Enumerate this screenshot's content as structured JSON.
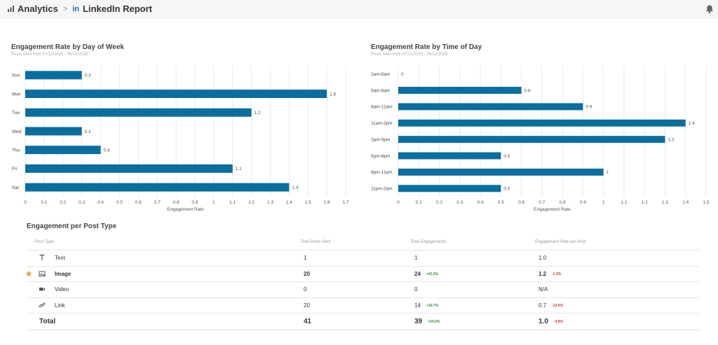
{
  "breadcrumb": {
    "section": "Analytics",
    "separator": ">",
    "network_badge": "in",
    "page": "LinkedIn Report"
  },
  "icons": {
    "analytics": "bar-chart-icon",
    "separator": "chevron-right-icon",
    "linkedin": "linkedin-icon",
    "notifications": "bell-icon"
  },
  "charts": {
    "day": {
      "title": "Engagement Rate by Day of Week",
      "subtitle": "Posts Sent from 07/12/2025 - 08/11/2025"
    },
    "time": {
      "title": "Engagement Rate by Time of Day",
      "subtitle": "Posts Sent from 07/12/2025 - 08/11/2025"
    }
  },
  "chart_data": [
    {
      "type": "bar",
      "orientation": "horizontal",
      "title": "Engagement Rate by Day of Week",
      "subtitle": "Posts Sent from 07/12/2025 - 08/11/2025",
      "categories": [
        "Sun",
        "Mon",
        "Tue",
        "Wed",
        "Thu",
        "Fri",
        "Sat"
      ],
      "values": [
        0.3,
        1.6,
        1.2,
        0.3,
        0.4,
        1.1,
        1.4
      ],
      "value_labels": [
        "0.3",
        "1.6",
        "1.2",
        "0.3",
        "0.4",
        "1.1",
        "1.4"
      ],
      "xlabel": "Engagement Rate",
      "xlim": [
        0,
        1.7
      ],
      "xticks": [
        "0",
        "0.1",
        "0.2",
        "0.3",
        "0.4",
        "0.5",
        "0.6",
        "0.7",
        "0.8",
        "0.9",
        "1",
        "1.1",
        "1.2",
        "1.3",
        "1.4",
        "1.5",
        "1.6",
        "1.7"
      ],
      "grid": true,
      "color": "#0a6e9e"
    },
    {
      "type": "bar",
      "orientation": "horizontal",
      "title": "Engagement Rate by Time of Day",
      "subtitle": "Posts Sent from 07/12/2025 - 08/11/2025",
      "categories": [
        "2am-5am",
        "5am-8am",
        "8am-11am",
        "11am-2pm",
        "2pm-5pm",
        "5pm-8pm",
        "8pm-11pm",
        "11pm-2am"
      ],
      "values": [
        0,
        0.6,
        0.9,
        1.4,
        1.3,
        0.5,
        1,
        0.5
      ],
      "value_labels": [
        "0",
        "0.6",
        "0.9",
        "1.4",
        "1.3",
        "0.5",
        "1",
        "0.5"
      ],
      "xlabel": "Engagement Rate",
      "xlim": [
        0,
        1.5
      ],
      "xticks": [
        "0",
        "0.1",
        "0.2",
        "0.3",
        "0.4",
        "0.5",
        "0.6",
        "0.7",
        "0.8",
        "0.9",
        "1",
        "1.1",
        "1.2",
        "1.3",
        "1.4",
        "1.5"
      ],
      "grid": true,
      "color": "#0a6e9e"
    }
  ],
  "table": {
    "title": "Engagement per Post Type",
    "columns": [
      "Post Type",
      "Total Posts Sent",
      "Total Engagements",
      "Engagement Rate per Post"
    ],
    "rows": [
      {
        "icon": "text-icon",
        "name": "Text",
        "posts": "1",
        "engagements": "1",
        "eng_delta": "",
        "rate": "1.0",
        "rate_delta": "",
        "starred": false
      },
      {
        "icon": "image-icon",
        "name": "Image",
        "posts": "20",
        "engagements": "24",
        "eng_delta": "+41.2%",
        "rate": "1.2",
        "rate_delta": "-1.2%",
        "starred": true
      },
      {
        "icon": "video-icon",
        "name": "Video",
        "posts": "0",
        "engagements": "0",
        "eng_delta": "-",
        "rate": "N/A",
        "rate_delta": "-",
        "starred": false
      },
      {
        "icon": "link-icon",
        "name": "Link",
        "posts": "20",
        "engagements": "14",
        "eng_delta": "+10.7%",
        "rate": "0.7",
        "rate_delta": "-12.5%",
        "starred": false
      }
    ],
    "total": {
      "name": "Total",
      "posts": "41",
      "engagements": "39",
      "eng_delta": "+34.5%",
      "rate": "1.0",
      "rate_delta": "-4.9%"
    }
  },
  "colors": {
    "bar": "#0a6e9e",
    "positive": "#2e8b3a",
    "negative": "#d0333a",
    "star": "#f0a030",
    "linkedin": "#1a6fb4"
  }
}
